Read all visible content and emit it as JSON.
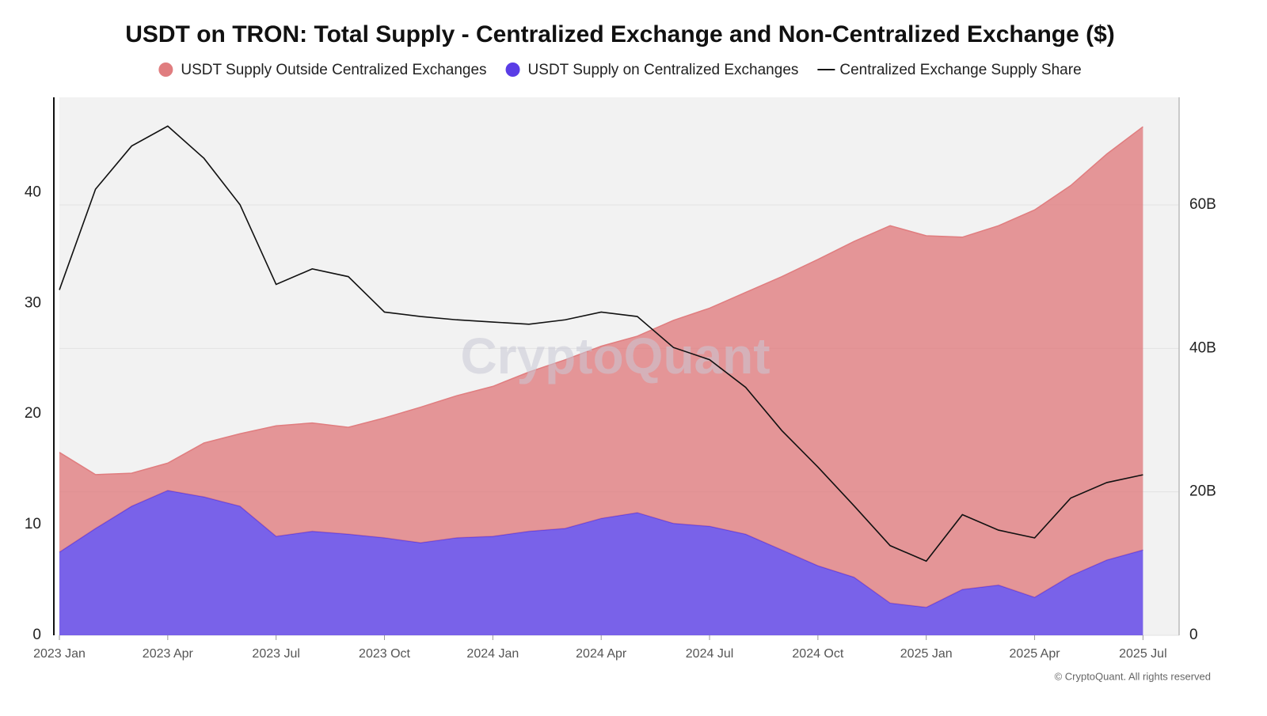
{
  "chart_data": {
    "type": "stacked-area-line",
    "title": "USDT on TRON: Total Supply - Centralized Exchange and Non-Centralized Exchange ($)",
    "watermark": "CryptoQuant",
    "credit": "© CryptoQuant. All rights reserved",
    "x": [
      "2023-01",
      "2023-02",
      "2023-03",
      "2023-04",
      "2023-05",
      "2023-06",
      "2023-07",
      "2023-08",
      "2023-09",
      "2023-10",
      "2023-11",
      "2023-12",
      "2024-01",
      "2024-02",
      "2024-03",
      "2024-04",
      "2024-05",
      "2024-06",
      "2024-07",
      "2024-08",
      "2024-09",
      "2024-10",
      "2024-11",
      "2024-12",
      "2025-01",
      "2025-02",
      "2025-03",
      "2025-04",
      "2025-05",
      "2025-06",
      "2025-07"
    ],
    "xlim": [
      "2023-01",
      "2025-08"
    ],
    "xticks": [
      {
        "value": "2023-01",
        "label": "2023 Jan"
      },
      {
        "value": "2023-04",
        "label": "2023 Apr"
      },
      {
        "value": "2023-07",
        "label": "2023 Jul"
      },
      {
        "value": "2023-10",
        "label": "2023 Oct"
      },
      {
        "value": "2024-01",
        "label": "2024 Jan"
      },
      {
        "value": "2024-04",
        "label": "2024 Apr"
      },
      {
        "value": "2024-07",
        "label": "2024 Jul"
      },
      {
        "value": "2024-10",
        "label": "2024 Oct"
      },
      {
        "value": "2025-01",
        "label": "2025 Jan"
      },
      {
        "value": "2025-04",
        "label": "2025 Apr"
      },
      {
        "value": "2025-07",
        "label": "2025 Jul"
      }
    ],
    "ylim": [
      0,
      48.6
    ],
    "yticks": [
      0,
      10,
      20,
      30,
      40
    ],
    "y2lim": [
      0,
      75
    ],
    "y2ticks": [
      0,
      {
        "value": 20,
        "label": "20B"
      },
      {
        "value": 40,
        "label": "40B"
      },
      {
        "value": 60,
        "label": "60B"
      }
    ],
    "grid": true,
    "series": [
      {
        "name": "USDT Supply Outside Centralized Exchanges",
        "type": "area",
        "axis": "y2",
        "color": "#e07d7f",
        "values": [
          13.9,
          7.5,
          4.6,
          3.8,
          7.5,
          10.1,
          15.4,
          15.1,
          14.9,
          16.7,
          18.9,
          19.8,
          20.9,
          22.2,
          23.5,
          24.0,
          24.6,
          28.3,
          30.4,
          33.7,
          38.1,
          42.7,
          46.8,
          52.6,
          51.8,
          49.1,
          50.1,
          54.0,
          54.4,
          56.6,
          59.0
        ]
      },
      {
        "name": "USDT Supply on Centralized Exchanges",
        "type": "area",
        "axis": "y2",
        "color": "#5a3de6",
        "values": [
          11.6,
          14.9,
          18.0,
          20.2,
          19.3,
          18.0,
          13.8,
          14.5,
          14.1,
          13.6,
          12.9,
          13.6,
          13.8,
          14.5,
          14.9,
          16.3,
          17.1,
          15.6,
          15.2,
          14.1,
          11.9,
          9.7,
          8.1,
          4.5,
          3.9,
          6.4,
          7.0,
          5.3,
          8.3,
          10.5,
          11.9
        ]
      },
      {
        "name": "Centralized Exchange Supply Share",
        "type": "line",
        "axis": "y",
        "color": "#111111",
        "values": [
          31.2,
          40.3,
          44.2,
          46.0,
          43.1,
          38.9,
          31.7,
          33.1,
          32.4,
          29.2,
          28.8,
          28.5,
          28.3,
          28.1,
          28.5,
          29.2,
          28.8,
          26.0,
          24.9,
          22.4,
          18.5,
          15.2,
          11.7,
          8.1,
          6.7,
          10.9,
          9.5,
          8.8,
          12.4,
          13.8,
          14.5
        ]
      }
    ]
  }
}
